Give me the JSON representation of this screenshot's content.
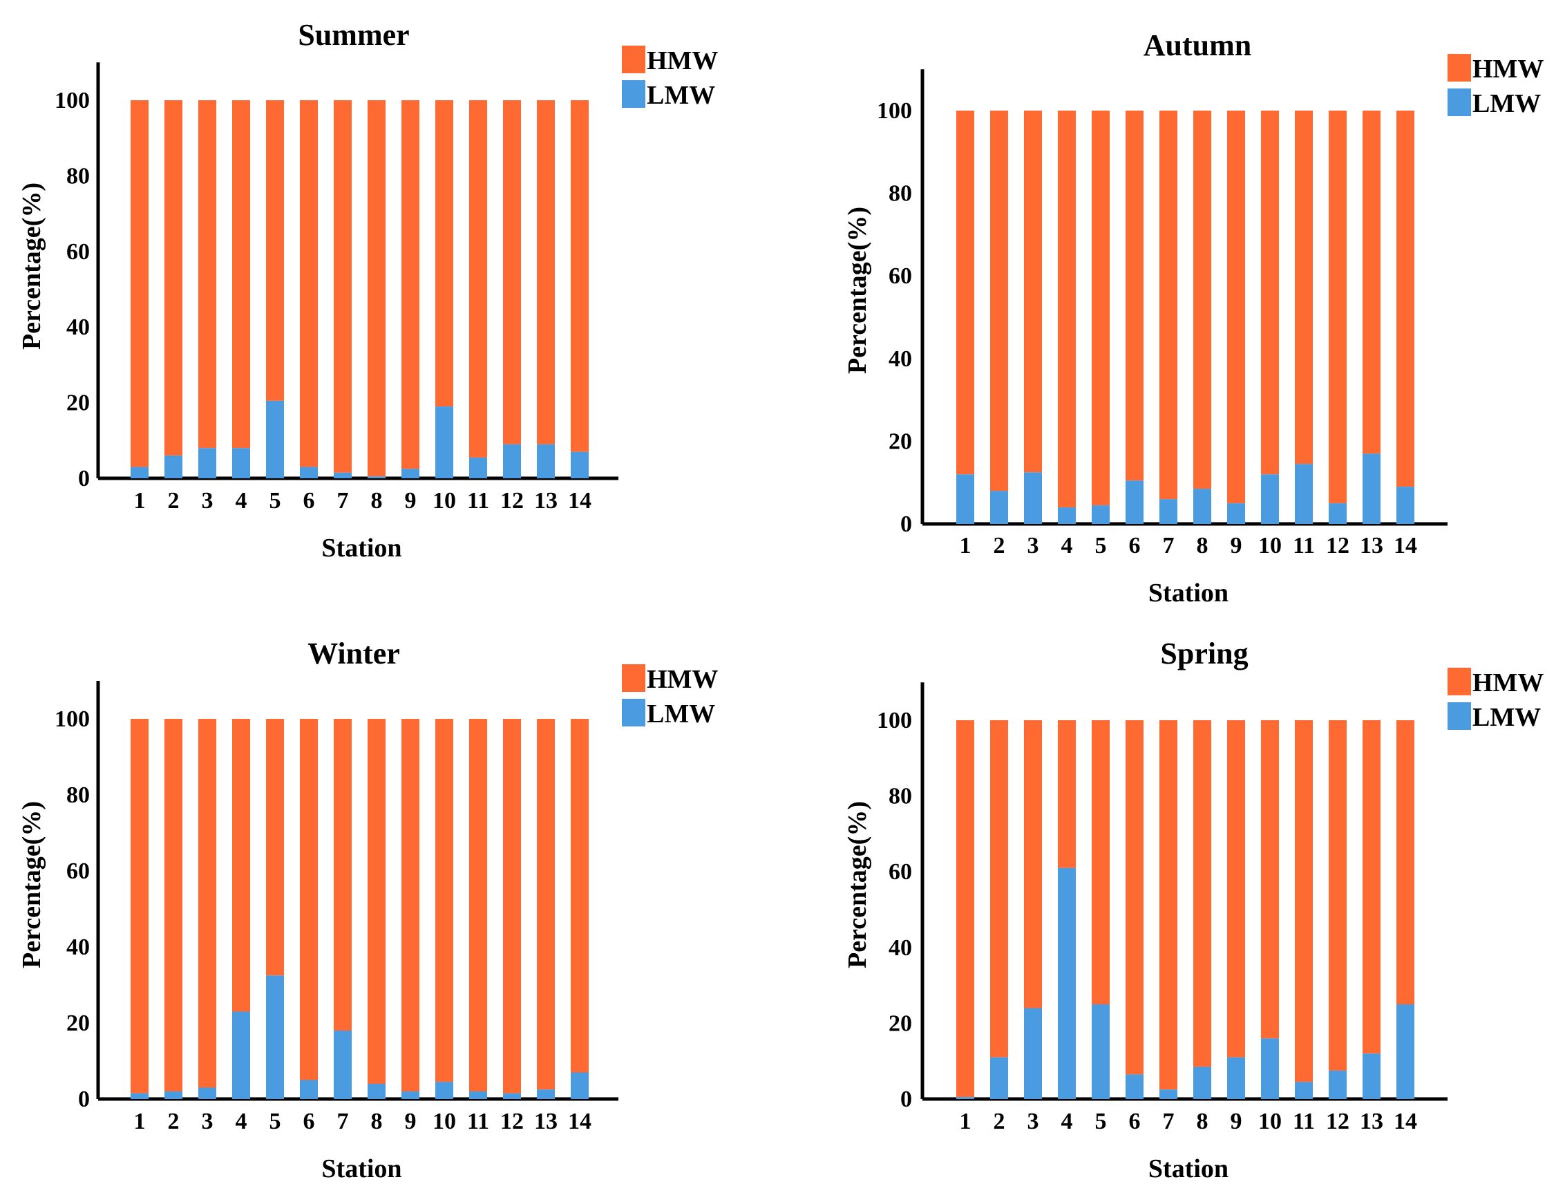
{
  "colors": {
    "HMW": "#FF6A33",
    "LMW": "#4A9BE0",
    "axis": "#000000"
  },
  "chart_data": [
    {
      "type": "bar",
      "stacked": true,
      "title": "Summer",
      "xlabel": "Station",
      "ylabel": "Percentage(%)",
      "ylim": [
        0,
        110
      ],
      "yticks": [
        0,
        20,
        40,
        60,
        80,
        100
      ],
      "categories": [
        "1",
        "2",
        "3",
        "4",
        "5",
        "6",
        "7",
        "8",
        "9",
        "10",
        "11",
        "12",
        "13",
        "14"
      ],
      "legend": [
        "HMW",
        "LMW"
      ],
      "legend_position": "top-right",
      "series": [
        {
          "name": "LMW",
          "values": [
            3,
            6,
            8,
            8,
            20.5,
            3,
            1.5,
            0.5,
            2.5,
            19,
            5.5,
            9,
            9,
            7
          ]
        },
        {
          "name": "HMW",
          "values": [
            97,
            94,
            92,
            92,
            79.5,
            97,
            98.5,
            99.5,
            97.5,
            81,
            94.5,
            91,
            91,
            93
          ]
        }
      ]
    },
    {
      "type": "bar",
      "stacked": true,
      "title": "Autumn",
      "xlabel": "Station",
      "ylabel": "Percentage(%)",
      "ylim": [
        0,
        110
      ],
      "yticks": [
        0,
        20,
        40,
        60,
        80,
        100
      ],
      "categories": [
        "1",
        "2",
        "3",
        "4",
        "5",
        "6",
        "7",
        "8",
        "9",
        "10",
        "11",
        "12",
        "13",
        "14"
      ],
      "legend": [
        "HMW",
        "LMW"
      ],
      "legend_position": "top-right",
      "series": [
        {
          "name": "LMW",
          "values": [
            12,
            8,
            12.5,
            4,
            4.5,
            10.5,
            6,
            8.5,
            5,
            12,
            14.5,
            5,
            17,
            9
          ]
        },
        {
          "name": "HMW",
          "values": [
            88,
            92,
            87.5,
            96,
            95.5,
            89.5,
            94,
            91.5,
            95,
            88,
            85.5,
            95,
            83,
            91
          ]
        }
      ]
    },
    {
      "type": "bar",
      "stacked": true,
      "title": "Winter",
      "xlabel": "Station",
      "ylabel": "Percentage(%)",
      "ylim": [
        0,
        110
      ],
      "yticks": [
        0,
        20,
        40,
        60,
        80,
        100
      ],
      "categories": [
        "1",
        "2",
        "3",
        "4",
        "5",
        "6",
        "7",
        "8",
        "9",
        "10",
        "11",
        "12",
        "13",
        "14"
      ],
      "legend": [
        "HMW",
        "LMW"
      ],
      "legend_position": "top-right",
      "series": [
        {
          "name": "LMW",
          "values": [
            1.5,
            2,
            3,
            23,
            32.5,
            5,
            18,
            4,
            2,
            4.5,
            2,
            1.5,
            2.5,
            7
          ]
        },
        {
          "name": "HMW",
          "values": [
            98.5,
            98,
            97,
            77,
            67.5,
            95,
            82,
            96,
            98,
            95.5,
            98,
            98.5,
            97.5,
            93
          ]
        }
      ]
    },
    {
      "type": "bar",
      "stacked": true,
      "title": "Spring",
      "xlabel": "Station",
      "ylabel": "Percentage(%)",
      "ylim": [
        0,
        110
      ],
      "yticks": [
        0,
        20,
        40,
        60,
        80,
        100
      ],
      "categories": [
        "1",
        "2",
        "3",
        "4",
        "5",
        "6",
        "7",
        "8",
        "9",
        "10",
        "11",
        "12",
        "13",
        "14"
      ],
      "legend": [
        "HMW",
        "LMW"
      ],
      "legend_position": "top-right",
      "series": [
        {
          "name": "LMW",
          "values": [
            0.5,
            11,
            24,
            61,
            25,
            6.5,
            2.5,
            8.5,
            11,
            16,
            4.5,
            7.5,
            12,
            25
          ]
        },
        {
          "name": "HMW",
          "values": [
            99.5,
            89,
            76,
            39,
            75,
            93.5,
            97.5,
            91.5,
            89,
            84,
            95.5,
            92.5,
            88,
            75
          ]
        }
      ]
    }
  ]
}
